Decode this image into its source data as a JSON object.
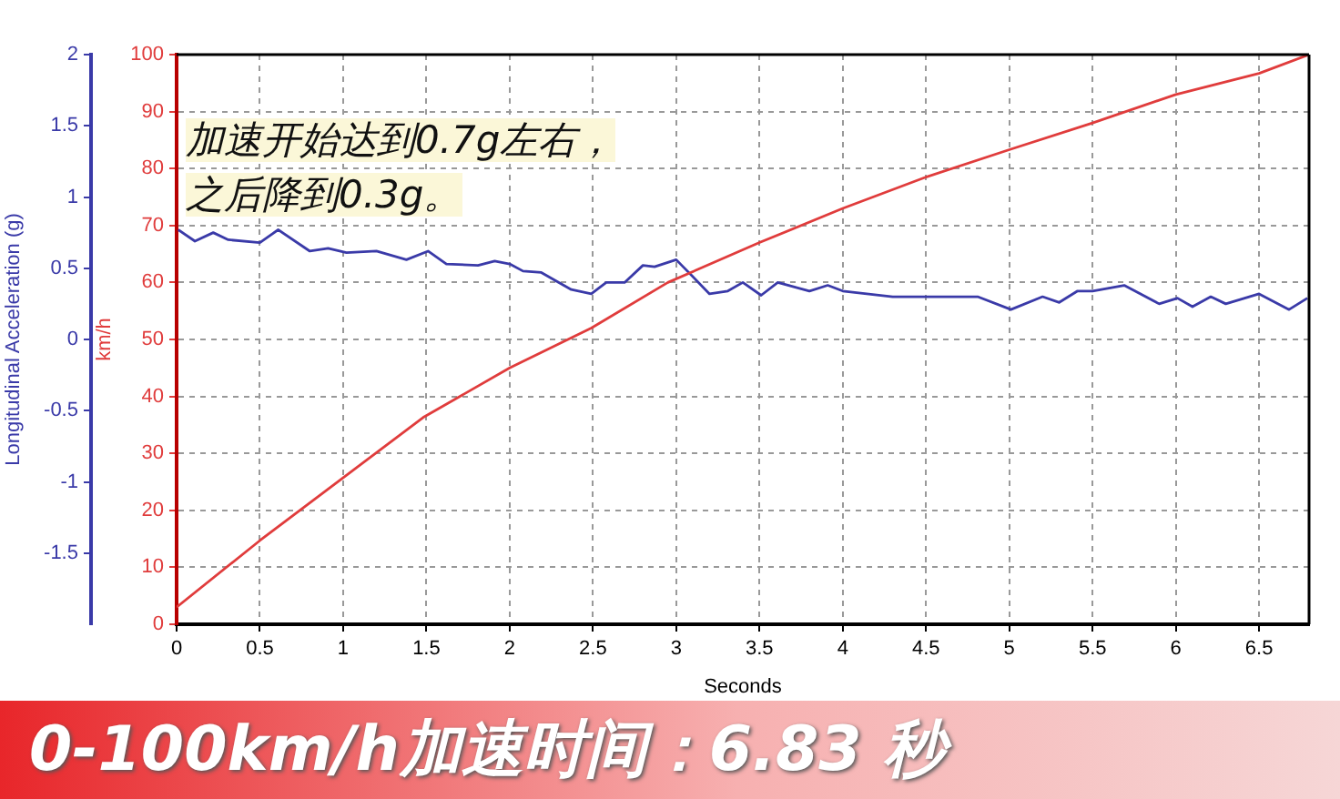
{
  "chart_data": {
    "type": "line",
    "xlabel": "Seconds",
    "ylabel": "km/h",
    "y2label": "Longitudinal Acceleration (g)",
    "xlim": [
      0,
      6.8
    ],
    "xticks": [
      0,
      0.5,
      1,
      1.5,
      2,
      2.5,
      3,
      3.5,
      4,
      4.5,
      5,
      5.5,
      6,
      6.5
    ],
    "ylim": [
      0,
      100
    ],
    "yticks": [
      0,
      10,
      20,
      30,
      40,
      50,
      60,
      70,
      80,
      90,
      100
    ],
    "y2lim": [
      -2,
      2
    ],
    "y2ticks": [
      -1.5,
      -1,
      -0.5,
      0,
      0.5,
      1,
      1.5,
      2
    ],
    "grid": true,
    "legend": false,
    "marker": "none",
    "line_style": "solid",
    "annotations": [
      "加速开始达到0.7g左右，",
      "之后降到0.3g。",
      "0-100km/h加速时间：6.83 秒"
    ],
    "series": [
      {
        "color": "#e03c3c",
        "x": [
          0,
          0.5,
          0.99,
          1.48,
          2.0,
          2.49,
          2.95,
          3.5,
          4.0,
          4.49,
          5.0,
          5.5,
          6.0,
          6.5,
          6.8
        ],
        "values": [
          3,
          14.7,
          25.5,
          36.3,
          45,
          52,
          60,
          67,
          73,
          78.4,
          83.3,
          88,
          93,
          96.7,
          100
        ]
      },
      {
        "color": "#3a3aa8",
        "axis": "y2",
        "x": [
          0.01,
          0.11,
          0.22,
          0.31,
          0.5,
          0.61,
          0.8,
          0.91,
          1.02,
          1.2,
          1.38,
          1.51,
          1.62,
          1.81,
          1.91,
          2.0,
          2.08,
          2.19,
          2.37,
          2.49,
          2.58,
          2.69,
          2.8,
          2.87,
          3.0,
          3.2,
          3.31,
          3.4,
          3.51,
          3.61,
          3.8,
          3.91,
          4.0,
          4.3,
          4.51,
          4.81,
          5.01,
          5.2,
          5.3,
          5.41,
          5.5,
          5.69,
          5.9,
          6.01,
          6.1,
          6.21,
          6.3,
          6.5,
          6.68,
          6.79
        ],
        "values": [
          0.77,
          0.69,
          0.75,
          0.7,
          0.68,
          0.77,
          0.62,
          0.64,
          0.61,
          0.62,
          0.56,
          0.62,
          0.53,
          0.52,
          0.55,
          0.53,
          0.48,
          0.47,
          0.35,
          0.32,
          0.4,
          0.4,
          0.52,
          0.51,
          0.56,
          0.32,
          0.34,
          0.4,
          0.31,
          0.4,
          0.34,
          0.38,
          0.34,
          0.3,
          0.3,
          0.3,
          0.21,
          0.3,
          0.26,
          0.34,
          0.34,
          0.38,
          0.25,
          0.29,
          0.23,
          0.3,
          0.25,
          0.32,
          0.21,
          0.29
        ]
      }
    ]
  }
}
